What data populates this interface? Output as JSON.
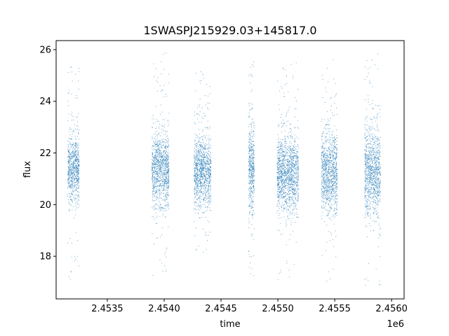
{
  "chart_data": {
    "type": "scatter",
    "title": "1SWASPJ215929.03+145817.0",
    "xlabel": "time",
    "ylabel": "flux",
    "x_offset_label": "1e6",
    "x_tick_labels": [
      "2.4535",
      "2.4540",
      "2.4545",
      "2.4550",
      "2.4555",
      "2.4560"
    ],
    "x_tick_values": [
      2453500,
      2454000,
      2454500,
      2455000,
      2455500,
      2456000
    ],
    "y_tick_labels": [
      "18",
      "20",
      "22",
      "24",
      "26"
    ],
    "y_tick_values": [
      18,
      20,
      22,
      24,
      26
    ],
    "xlim": [
      2453050,
      2456110
    ],
    "ylim": [
      16.35,
      26.35
    ],
    "grid": false,
    "legend": "none",
    "marker_color": "#1f77b4",
    "series": [
      {
        "clusters": [
          {
            "x_range": [
              2453150,
              2453250
            ],
            "flux_center": 21.4,
            "flux_core": [
              20.2,
              22.8
            ],
            "flux_extent": [
              17.0,
              25.4
            ]
          },
          {
            "x_range": [
              2453890,
              2454040
            ],
            "flux_center": 21.4,
            "flux_core": [
              20.0,
              23.0
            ],
            "flux_extent": [
              17.0,
              25.9
            ]
          },
          {
            "x_range": [
              2454260,
              2454410
            ],
            "flux_center": 21.3,
            "flux_core": [
              20.1,
              22.9
            ],
            "flux_extent": [
              17.7,
              25.2
            ]
          },
          {
            "x_range": [
              2454740,
              2454790
            ],
            "flux_center": 21.5,
            "flux_core": [
              20.0,
              23.0
            ],
            "flux_extent": [
              17.2,
              25.7
            ]
          },
          {
            "x_range": [
              2454990,
              2455180
            ],
            "flux_center": 21.2,
            "flux_core": [
              19.9,
              23.0
            ],
            "flux_extent": [
              16.8,
              25.5
            ]
          },
          {
            "x_range": [
              2455380,
              2455520
            ],
            "flux_center": 21.3,
            "flux_core": [
              19.9,
              23.1
            ],
            "flux_extent": [
              16.8,
              25.8
            ]
          },
          {
            "x_range": [
              2455760,
              2455900
            ],
            "flux_center": 21.3,
            "flux_core": [
              19.7,
              23.3
            ],
            "flux_extent": [
              16.8,
              25.9
            ]
          }
        ]
      }
    ]
  }
}
